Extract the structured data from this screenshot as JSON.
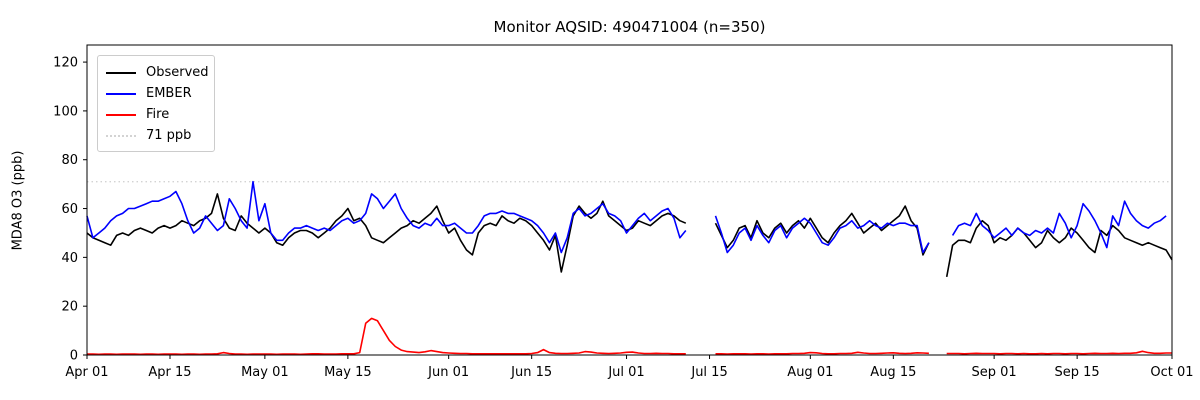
{
  "chart_data": {
    "type": "line",
    "title": "Monitor AQSID: 490471004 (n=350)",
    "xlabel": "",
    "ylabel": "MDA8 O3 (ppb)",
    "ylim": [
      0,
      127
    ],
    "yticks": [
      0,
      20,
      40,
      60,
      80,
      100,
      120
    ],
    "x_tick_days": [
      0,
      14,
      30,
      44,
      61,
      75,
      91,
      105,
      122,
      136,
      153,
      167,
      183
    ],
    "x_tick_labels": [
      "Apr 01",
      "Apr 15",
      "May 01",
      "May 15",
      "Jun 01",
      "Jun 15",
      "Jul 01",
      "Jul 15",
      "Aug 01",
      "Aug 15",
      "Sep 01",
      "Sep 15",
      "Oct 01"
    ],
    "x_range_days": [
      0,
      183
    ],
    "grid": false,
    "legend_position": "upper-left",
    "threshold": {
      "label": "71 ppb",
      "value": 71,
      "color": "#d3d3d3",
      "style": "dotted"
    },
    "series": [
      {
        "name": "Observed",
        "color": "#000000",
        "values": [
          50,
          48,
          47,
          46,
          45,
          49,
          50,
          49,
          51,
          52,
          51,
          50,
          52,
          53,
          52,
          53,
          55,
          54,
          53,
          55,
          56,
          58,
          66,
          56,
          52,
          51,
          57,
          54,
          52,
          50,
          52,
          50,
          46,
          45,
          48,
          50,
          51,
          51,
          50,
          48,
          50,
          52,
          55,
          57,
          60,
          55,
          56,
          53,
          48,
          47,
          46,
          48,
          50,
          52,
          53,
          55,
          54,
          56,
          58,
          61,
          55,
          50,
          52,
          47,
          43,
          41,
          50,
          53,
          54,
          53,
          57,
          55,
          54,
          56,
          55,
          53,
          50,
          47,
          43,
          49,
          34,
          45,
          57,
          61,
          58,
          56,
          58,
          63,
          57,
          55,
          53,
          51,
          52,
          55,
          54,
          53,
          55,
          57,
          58,
          57,
          55,
          54,
          null,
          null,
          null,
          null,
          54,
          49,
          44,
          47,
          52,
          53,
          48,
          55,
          50,
          48,
          52,
          54,
          50,
          53,
          55,
          52,
          56,
          52,
          48,
          46,
          50,
          53,
          55,
          58,
          54,
          50,
          52,
          54,
          51,
          53,
          55,
          57,
          61,
          55,
          52,
          41,
          46,
          null,
          null,
          32,
          45,
          47,
          47,
          46,
          52,
          55,
          53,
          46,
          48,
          47,
          49,
          52,
          50,
          47,
          44,
          46,
          51,
          48,
          46,
          48,
          52,
          50,
          47,
          44,
          42,
          51,
          49,
          53,
          51,
          48,
          47,
          46,
          45,
          46,
          45,
          44,
          43,
          39
        ]
      },
      {
        "name": "EMBER",
        "color": "#0000ff",
        "values": [
          57,
          48,
          50,
          52,
          55,
          57,
          58,
          60,
          60,
          61,
          62,
          63,
          63,
          64,
          65,
          67,
          62,
          55,
          50,
          52,
          57,
          54,
          51,
          53,
          64,
          60,
          55,
          52,
          71,
          55,
          62,
          50,
          47,
          47,
          50,
          52,
          52,
          53,
          52,
          51,
          52,
          51,
          53,
          55,
          56,
          54,
          55,
          58,
          66,
          64,
          60,
          63,
          66,
          60,
          56,
          53,
          52,
          54,
          53,
          56,
          53,
          53,
          54,
          52,
          50,
          50,
          53,
          57,
          58,
          58,
          59,
          58,
          58,
          57,
          56,
          55,
          53,
          50,
          46,
          50,
          42,
          48,
          58,
          60,
          57,
          58,
          60,
          62,
          58,
          57,
          55,
          50,
          53,
          56,
          58,
          55,
          57,
          59,
          60,
          56,
          48,
          51,
          null,
          null,
          null,
          null,
          57,
          50,
          42,
          45,
          50,
          52,
          47,
          53,
          49,
          46,
          51,
          53,
          48,
          52,
          54,
          56,
          54,
          50,
          46,
          45,
          48,
          52,
          53,
          55,
          52,
          53,
          55,
          53,
          52,
          54,
          53,
          54,
          54,
          53,
          53,
          42,
          46,
          null,
          null,
          null,
          49,
          53,
          54,
          53,
          58,
          53,
          51,
          48,
          50,
          52,
          49,
          52,
          50,
          49,
          51,
          50,
          52,
          50,
          58,
          54,
          48,
          53,
          62,
          59,
          55,
          50,
          44,
          57,
          53,
          63,
          58,
          55,
          53,
          52,
          54,
          55,
          57,
          null
        ]
      },
      {
        "name": "Fire",
        "color": "#ff0000",
        "values": [
          0.4,
          0.4,
          0.3,
          0.4,
          0.4,
          0.3,
          0.4,
          0.4,
          0.4,
          0.3,
          0.4,
          0.4,
          0.3,
          0.4,
          0.4,
          0.4,
          0.3,
          0.4,
          0.4,
          0.3,
          0.4,
          0.4,
          0.5,
          1.0,
          0.6,
          0.4,
          0.4,
          0.3,
          0.4,
          0.4,
          0.4,
          0.4,
          0.3,
          0.4,
          0.4,
          0.4,
          0.3,
          0.4,
          0.5,
          0.5,
          0.4,
          0.4,
          0.4,
          0.5,
          0.5,
          0.5,
          1.0,
          13.0,
          15.0,
          14.0,
          10.0,
          6.0,
          3.5,
          2.0,
          1.4,
          1.2,
          1.0,
          1.3,
          1.8,
          1.4,
          1.0,
          0.8,
          0.7,
          0.6,
          0.6,
          0.5,
          0.5,
          0.5,
          0.5,
          0.5,
          0.5,
          0.5,
          0.5,
          0.5,
          0.5,
          0.6,
          1.0,
          2.2,
          1.0,
          0.7,
          0.6,
          0.6,
          0.7,
          0.8,
          1.4,
          1.2,
          0.8,
          0.7,
          0.6,
          0.7,
          0.8,
          1.1,
          1.2,
          0.8,
          0.6,
          0.6,
          0.7,
          0.6,
          0.6,
          0.5,
          0.5,
          0.5,
          null,
          null,
          null,
          null,
          0.5,
          0.5,
          0.4,
          0.5,
          0.5,
          0.5,
          0.4,
          0.5,
          0.5,
          0.4,
          0.5,
          0.5,
          0.5,
          0.6,
          0.6,
          0.7,
          1.0,
          0.9,
          0.6,
          0.5,
          0.5,
          0.6,
          0.6,
          0.7,
          1.1,
          0.8,
          0.6,
          0.6,
          0.7,
          0.8,
          0.9,
          0.7,
          0.6,
          0.7,
          0.9,
          0.8,
          0.7,
          null,
          null,
          0.6,
          0.6,
          0.6,
          0.5,
          0.6,
          0.7,
          0.6,
          0.6,
          0.6,
          0.5,
          0.6,
          0.6,
          0.5,
          0.6,
          0.5,
          0.5,
          0.6,
          0.5,
          0.6,
          0.6,
          0.5,
          0.6,
          0.6,
          0.5,
          0.6,
          0.7,
          0.6,
          0.6,
          0.7,
          0.6,
          0.7,
          0.7,
          0.9,
          1.5,
          1.0,
          0.7,
          0.7,
          0.8,
          0.8
        ]
      }
    ]
  },
  "style": {
    "axis_color": "#000000",
    "tick_font_px": 13,
    "line_width": 1.6
  }
}
